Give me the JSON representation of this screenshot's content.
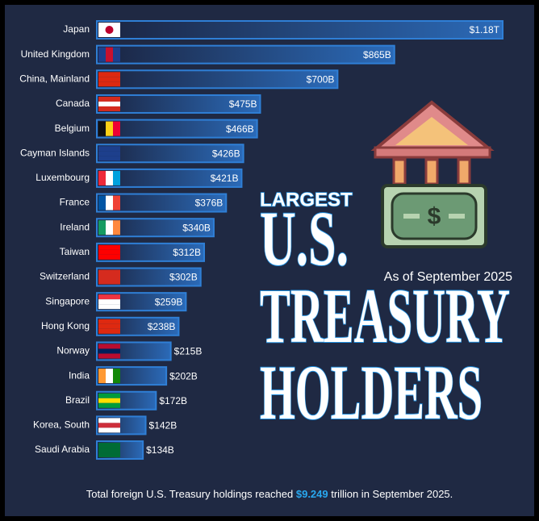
{
  "chart_data": {
    "type": "bar",
    "orientation": "horizontal",
    "title_parts": [
      "LARGEST",
      "U.S.",
      "TREASURY",
      "HOLDERS"
    ],
    "subtitle": "As of September 2025",
    "footnote": [
      "Total foreign U.S. Treasury holdings reached ",
      "$9.249",
      " trillion in September 2025."
    ],
    "categories": [
      "Japan",
      "United Kingdom",
      "China, Mainland",
      "Canada",
      "Belgium",
      "Cayman Islands",
      "Luxembourg",
      "France",
      "Ireland",
      "Taiwan",
      "Switzerland",
      "Singapore",
      "Hong Kong",
      "Norway",
      "India",
      "Brazil",
      "Korea, South",
      "Saudi Arabia"
    ],
    "values": [
      1180,
      865,
      700,
      475,
      466,
      426,
      421,
      376,
      340,
      312,
      302,
      259,
      238,
      215,
      202,
      172,
      142,
      134
    ],
    "value_labels": [
      "$1.18T",
      "$865B",
      "$700B",
      "$475B",
      "$466B",
      "$426B",
      "$421B",
      "$376B",
      "$340B",
      "$312B",
      "$302B",
      "$259B",
      "$238B",
      "$215B",
      "$202B",
      "$172B",
      "$142B",
      "$134B"
    ],
    "color": "#2f7fd6"
  }
}
